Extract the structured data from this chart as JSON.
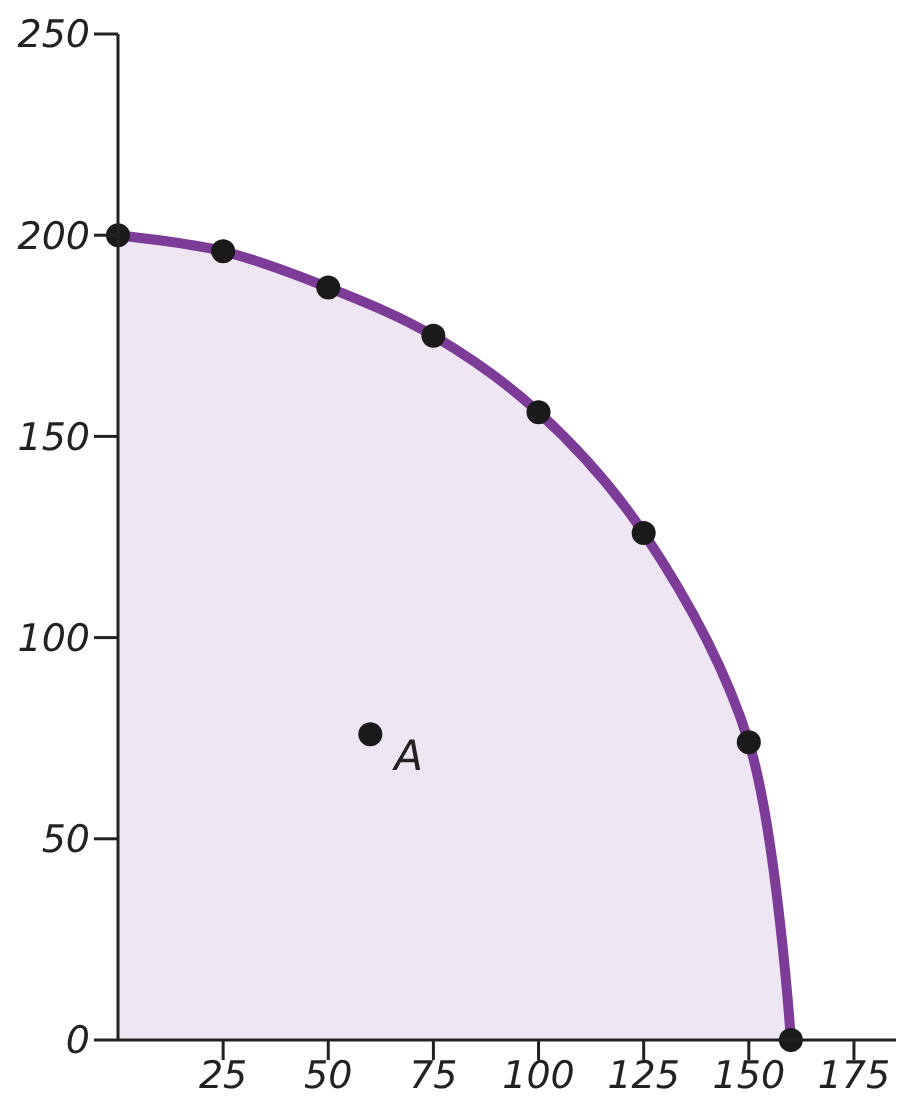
{
  "chart_data": {
    "type": "line",
    "x": [
      0,
      25,
      50,
      75,
      100,
      125,
      150,
      160
    ],
    "series": [
      {
        "type": "area",
        "color": "#7d3c98",
        "marker": "none",
        "values": [
          200,
          196,
          187,
          175,
          156,
          126,
          74,
          0
        ]
      },
      {
        "type": "scatter",
        "color": "#1a1a1a",
        "values": [
          200,
          196,
          187,
          175,
          156,
          126,
          74,
          0
        ]
      },
      {
        "type": "scatter",
        "color": "#1a1a1a",
        "x": [
          60
        ],
        "values": [
          76
        ]
      }
    ],
    "annotations": [
      {
        "text": "A",
        "x": 60,
        "y": 76
      }
    ],
    "xlim": [
      0,
      185
    ],
    "xticks": [
      25,
      50,
      75,
      100,
      125,
      150,
      175
    ],
    "ylim": [
      0,
      250
    ],
    "yticks": [
      0,
      50,
      100,
      150,
      200,
      250
    ],
    "grid": false,
    "marker": "circle"
  }
}
